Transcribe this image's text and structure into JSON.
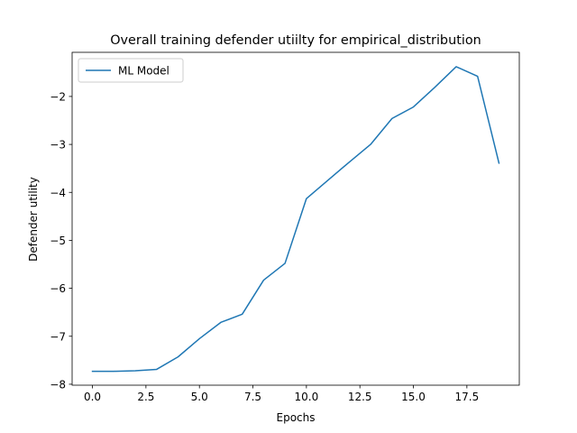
{
  "chart_data": {
    "type": "line",
    "title": "Overall training defender utiilty for empirical_distribution",
    "xlabel": "Epochs",
    "ylabel": "Defender utility",
    "xlim": [
      -0.95,
      19.95
    ],
    "ylim": [
      -8.02,
      -1.08
    ],
    "xticks": [
      0.0,
      2.5,
      5.0,
      7.5,
      10.0,
      12.5,
      15.0,
      17.5
    ],
    "xtick_labels": [
      "0.0",
      "2.5",
      "5.0",
      "7.5",
      "10.0",
      "12.5",
      "15.0",
      "17.5"
    ],
    "yticks": [
      -8,
      -7,
      -6,
      -5,
      -4,
      -3,
      -2
    ],
    "ytick_labels": [
      "−8",
      "−7",
      "−6",
      "−5",
      "−4",
      "−3",
      "−2"
    ],
    "grid": false,
    "legend_position": "upper-left",
    "series": [
      {
        "name": "ML Model",
        "color": "#1f77b4",
        "x": [
          0,
          1,
          2,
          3,
          4,
          5,
          6,
          7,
          8,
          9,
          10,
          11,
          12,
          13,
          14,
          15,
          16,
          17,
          18,
          19
        ],
        "y": [
          -7.73,
          -7.73,
          -7.72,
          -7.69,
          -7.43,
          -7.05,
          -6.71,
          -6.54,
          -5.83,
          -5.48,
          -4.13,
          -3.75,
          -3.37,
          -3.0,
          -2.46,
          -2.22,
          -1.81,
          -1.38,
          -1.58,
          -3.39
        ]
      }
    ]
  }
}
